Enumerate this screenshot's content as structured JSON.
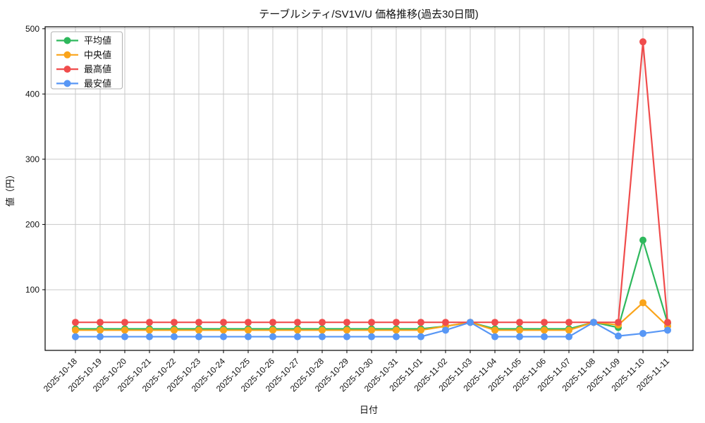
{
  "chart_data": {
    "type": "line",
    "title": "テーブルシティ/SV1V/U 価格推移(過去30日間)",
    "xlabel": "日付",
    "ylabel": "値（円）",
    "ylim": [
      7,
      503
    ],
    "yticks": [
      100,
      200,
      300,
      400,
      500
    ],
    "grid": true,
    "legend_position": "upper-left",
    "background_color": "#ffffff",
    "grid_color": "#c9c9c9",
    "spine_color": "#000000",
    "categories": [
      "2025-10-18",
      "2025-10-19",
      "2025-10-20",
      "2025-10-21",
      "2025-10-22",
      "2025-10-23",
      "2025-10-24",
      "2025-10-25",
      "2025-10-26",
      "2025-10-27",
      "2025-10-28",
      "2025-10-29",
      "2025-10-30",
      "2025-10-31",
      "2025-11-01",
      "2025-11-02",
      "2025-11-03",
      "2025-11-04",
      "2025-11-05",
      "2025-11-06",
      "2025-11-07",
      "2025-11-08",
      "2025-11-09",
      "2025-11-10",
      "2025-11-11"
    ],
    "series": [
      {
        "name": "平均値",
        "color": "#2eb85c",
        "values": [
          40,
          40,
          40,
          40,
          40,
          40,
          40,
          40,
          40,
          40,
          40,
          40,
          40,
          40,
          40,
          44,
          50,
          40,
          40,
          40,
          40,
          50,
          42,
          176,
          49
        ]
      },
      {
        "name": "中央値",
        "color": "#faa41a",
        "values": [
          38,
          38,
          38,
          38,
          38,
          38,
          38,
          38,
          38,
          38,
          38,
          38,
          38,
          38,
          38,
          44,
          50,
          38,
          38,
          38,
          38,
          50,
          46,
          80,
          44
        ]
      },
      {
        "name": "最高値",
        "color": "#f04c4c",
        "values": [
          50,
          50,
          50,
          50,
          50,
          50,
          50,
          50,
          50,
          50,
          50,
          50,
          50,
          50,
          50,
          50,
          50,
          50,
          50,
          50,
          50,
          50,
          50,
          480,
          50
        ]
      },
      {
        "name": "最安値",
        "color": "#5897f5",
        "values": [
          28,
          28,
          28,
          28,
          28,
          28,
          28,
          28,
          28,
          28,
          28,
          28,
          28,
          28,
          28,
          38,
          50,
          28,
          28,
          28,
          28,
          50,
          29,
          33,
          38
        ]
      }
    ]
  }
}
